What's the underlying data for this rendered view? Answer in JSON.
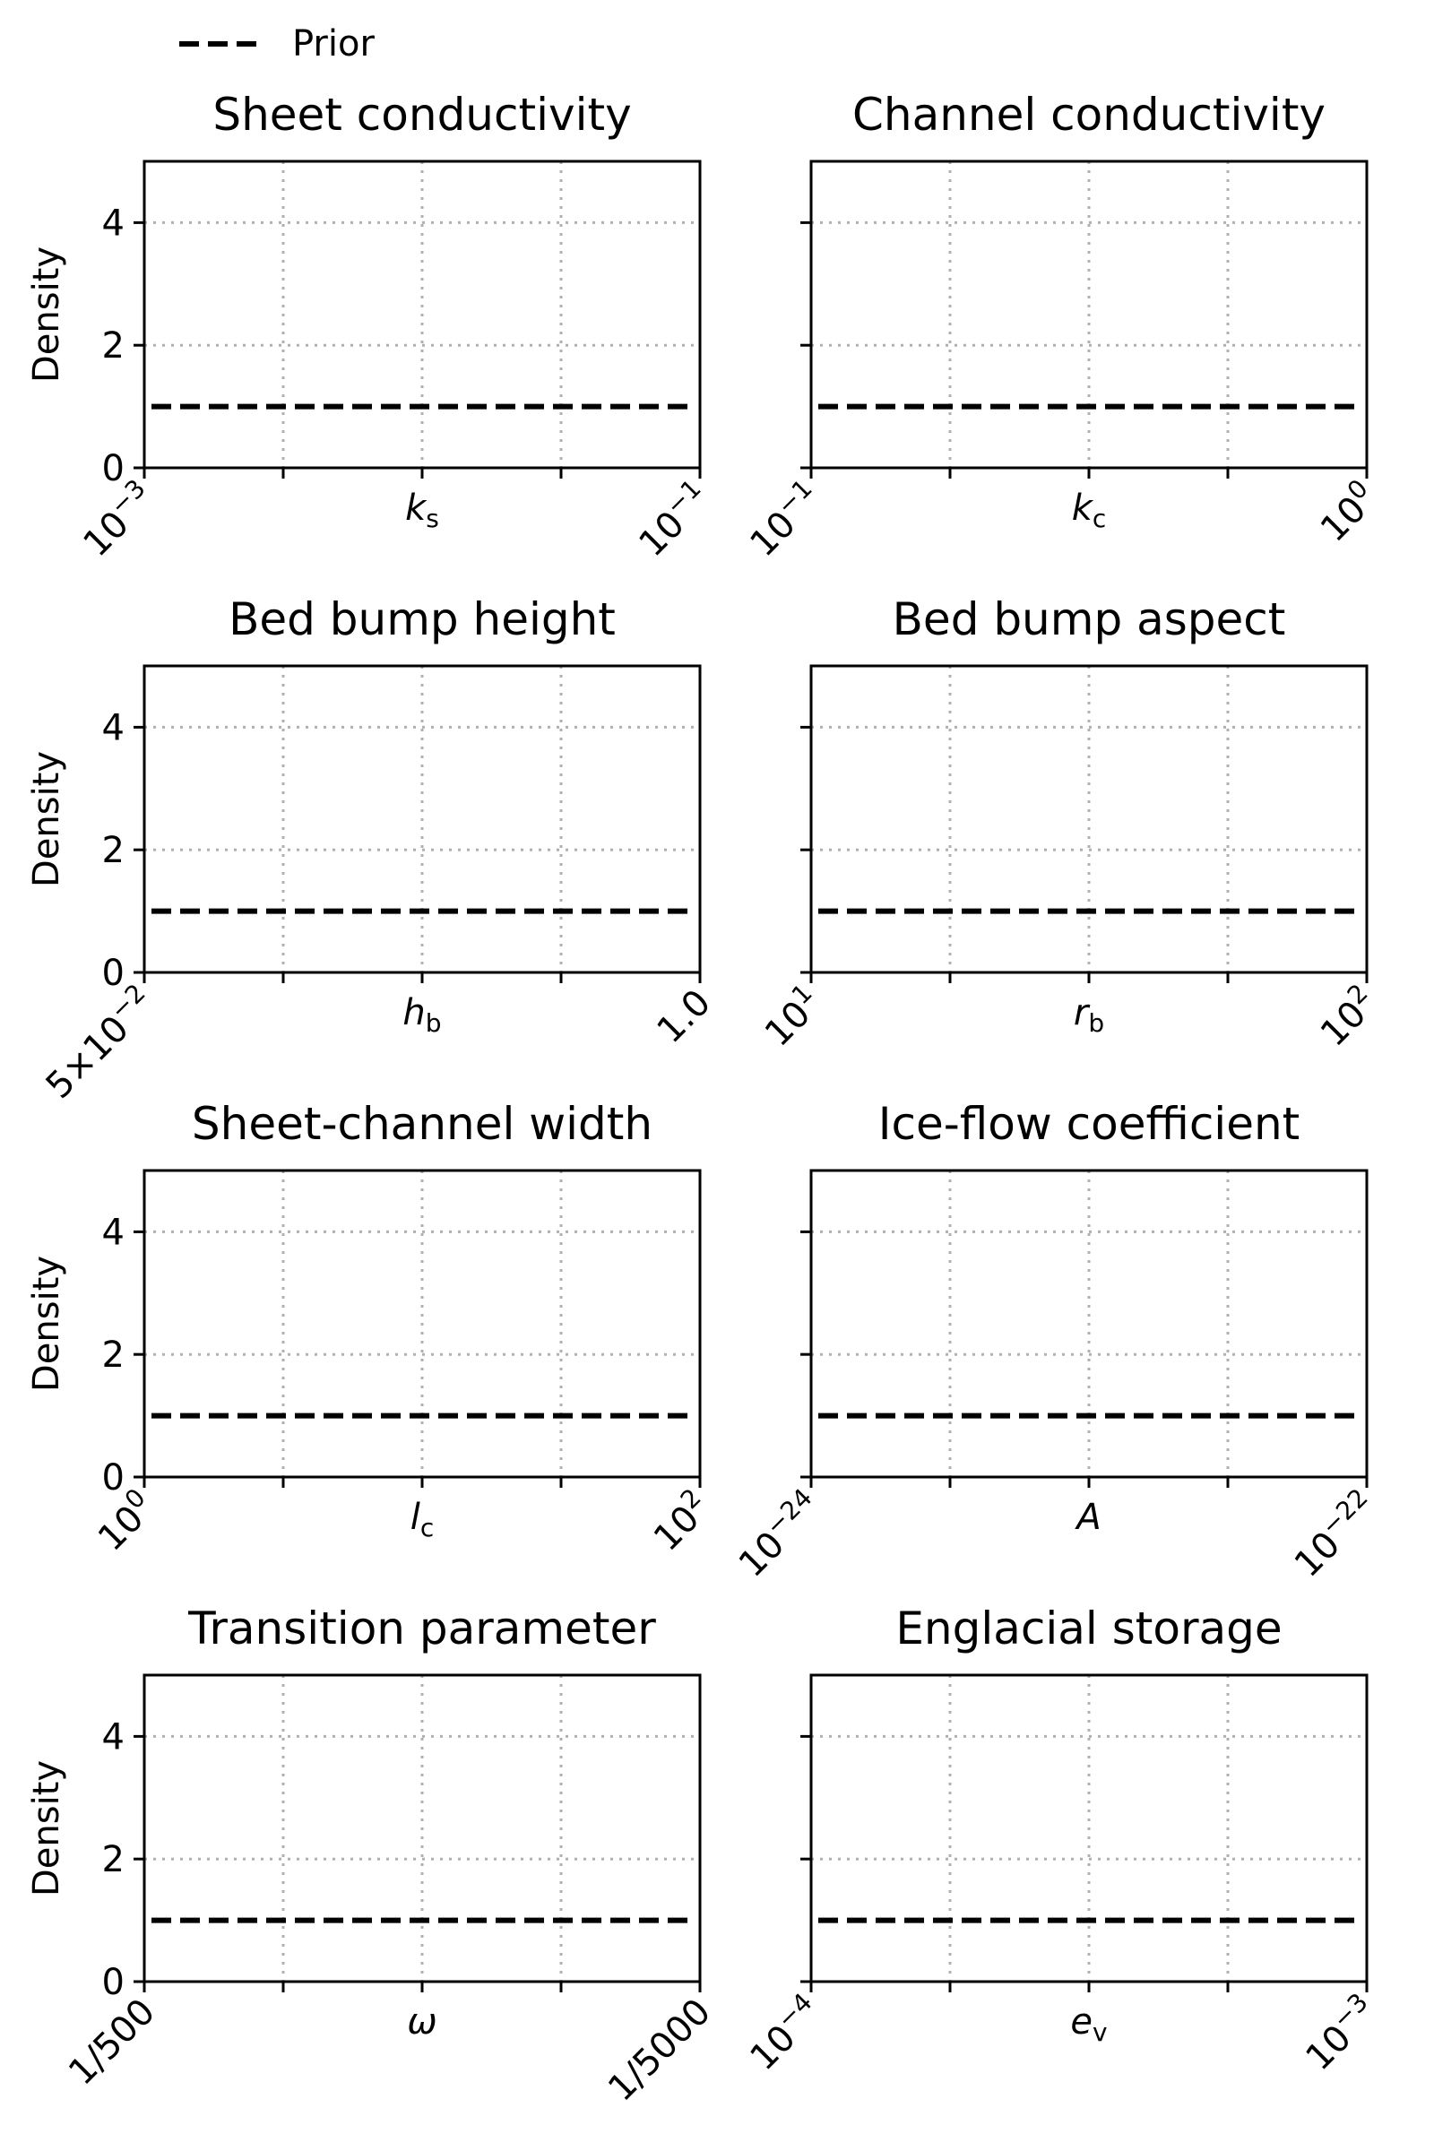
{
  "legend": {
    "label": "Prior",
    "placement": "top-left",
    "line_style": "dashed",
    "color": "#000000"
  },
  "chart_data": [
    {
      "type": "line",
      "title": "Sheet conductivity",
      "ylabel": "Density",
      "xlabel": {
        "base": "k",
        "sub": "s"
      },
      "xticks": [
        {
          "base": "10",
          "exp": "−3"
        },
        {
          "base": "10",
          "exp": "−1"
        }
      ],
      "ylim": [
        0,
        5
      ],
      "yticks": [
        "0",
        "2",
        "4"
      ],
      "grid": true,
      "series": [
        {
          "name": "Prior",
          "values": [
            1,
            1
          ]
        }
      ]
    },
    {
      "type": "line",
      "title": "Channel conductivity",
      "ylabel": "",
      "xlabel": {
        "base": "k",
        "sub": "c"
      },
      "xticks": [
        {
          "base": "10",
          "exp": "−1"
        },
        {
          "base": "10",
          "exp": "0"
        }
      ],
      "ylim": [
        0,
        5
      ],
      "yticks": [],
      "grid": true,
      "series": [
        {
          "name": "Prior",
          "values": [
            1,
            1
          ]
        }
      ]
    },
    {
      "type": "line",
      "title": "Bed bump height",
      "ylabel": "Density",
      "xlabel": {
        "base": "h",
        "sub": "b"
      },
      "xticks": [
        {
          "base": "5×10",
          "exp": "−2"
        },
        {
          "base": "1.0",
          "exp": ""
        }
      ],
      "ylim": [
        0,
        5
      ],
      "yticks": [
        "0",
        "2",
        "4"
      ],
      "grid": true,
      "series": [
        {
          "name": "Prior",
          "values": [
            1,
            1
          ]
        }
      ]
    },
    {
      "type": "line",
      "title": "Bed bump aspect",
      "ylabel": "",
      "xlabel": {
        "base": "r",
        "sub": "b"
      },
      "xticks": [
        {
          "base": "10",
          "exp": "1"
        },
        {
          "base": "10",
          "exp": "2"
        }
      ],
      "ylim": [
        0,
        5
      ],
      "yticks": [],
      "grid": true,
      "series": [
        {
          "name": "Prior",
          "values": [
            1,
            1
          ]
        }
      ]
    },
    {
      "type": "line",
      "title": "Sheet-channel width",
      "ylabel": "Density",
      "xlabel": {
        "base": "l",
        "sub": "c"
      },
      "xticks": [
        {
          "base": "10",
          "exp": "0"
        },
        {
          "base": "10",
          "exp": "2"
        }
      ],
      "ylim": [
        0,
        5
      ],
      "yticks": [
        "0",
        "2",
        "4"
      ],
      "grid": true,
      "series": [
        {
          "name": "Prior",
          "values": [
            1,
            1
          ]
        }
      ]
    },
    {
      "type": "line",
      "title": "Ice-flow coefficient",
      "ylabel": "",
      "xlabel": {
        "base": "A",
        "sub": ""
      },
      "xticks": [
        {
          "base": "10",
          "exp": "−24"
        },
        {
          "base": "10",
          "exp": "−22"
        }
      ],
      "ylim": [
        0,
        5
      ],
      "yticks": [],
      "grid": true,
      "series": [
        {
          "name": "Prior",
          "values": [
            1,
            1
          ]
        }
      ]
    },
    {
      "type": "line",
      "title": "Transition parameter",
      "ylabel": "Density",
      "xlabel": {
        "base": "ω",
        "sub": ""
      },
      "xticks": [
        {
          "base": "1/500",
          "exp": ""
        },
        {
          "base": "1/5000",
          "exp": ""
        }
      ],
      "ylim": [
        0,
        5
      ],
      "yticks": [
        "0",
        "2",
        "4"
      ],
      "grid": true,
      "series": [
        {
          "name": "Prior",
          "values": [
            1,
            1
          ]
        }
      ]
    },
    {
      "type": "line",
      "title": "Englacial storage",
      "ylabel": "",
      "xlabel": {
        "base": "e",
        "sub": "v"
      },
      "xticks": [
        {
          "base": "10",
          "exp": "−4"
        },
        {
          "base": "10",
          "exp": "−3"
        }
      ],
      "ylim": [
        0,
        5
      ],
      "yticks": [],
      "grid": true,
      "series": [
        {
          "name": "Prior",
          "values": [
            1,
            1
          ]
        }
      ]
    }
  ]
}
